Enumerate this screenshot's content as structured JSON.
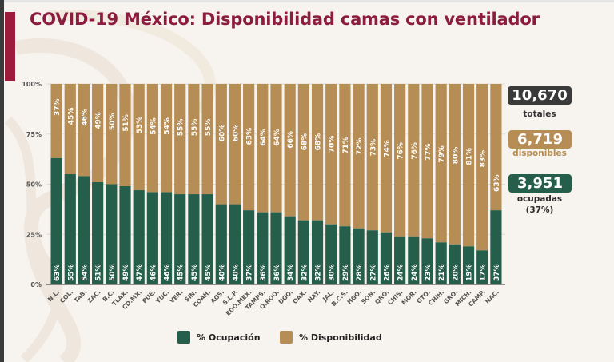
{
  "title": "COVID-19 México: Disponibilidad camas con ventilador",
  "colors": {
    "ocupacion": "#255e4b",
    "disponibilidad": "#b68d55",
    "title": "#8c1d40",
    "accent": "#9b1c3d",
    "total_box": "#3a3a3a"
  },
  "summary": {
    "total_value": "10,670",
    "total_label": "totales",
    "disponibles_value": "6,719",
    "disponibles_label": "disponibles",
    "ocupadas_value": "3,951",
    "ocupadas_label": "ocupadas",
    "ocupadas_pct": "(37%)"
  },
  "legend": {
    "ocupacion": "% Ocupación",
    "disponibilidad": "% Disponibilidad"
  },
  "chart_data": {
    "type": "bar",
    "stacked": true,
    "title": "COVID-19 México: Disponibilidad camas con ventilador",
    "xlabel": "",
    "ylabel": "",
    "ylim": [
      0,
      100
    ],
    "yticks": [
      "0%",
      "25%",
      "50%",
      "75%",
      "100%"
    ],
    "ytick_values": [
      0,
      25,
      50,
      75,
      100
    ],
    "legend_position": "bottom",
    "categories": [
      "N.L.",
      "COL.",
      "TAB.",
      "ZAC.",
      "B.C.",
      "TLAX.",
      "CD.MX.",
      "PUE.",
      "YUC.",
      "VER.",
      "SIN.",
      "COAH.",
      "AGS.",
      "S.L.P.",
      "EDO.MEX.",
      "TAMPS.",
      "Q.ROO.",
      "DGO.",
      "OAX.",
      "NAY.",
      "JAL.",
      "B.C.S.",
      "HGO.",
      "SON.",
      "QRO.",
      "CHIS.",
      "MOR.",
      "GTO.",
      "CHIH.",
      "GRO.",
      "MICH.",
      "CAMP.",
      "NAC."
    ],
    "series": [
      {
        "name": "% Ocupación",
        "values": [
          63,
          55,
          54,
          51,
          50,
          49,
          47,
          46,
          46,
          45,
          45,
          45,
          40,
          40,
          37,
          36,
          36,
          34,
          32,
          32,
          30,
          29,
          28,
          27,
          26,
          24,
          24,
          23,
          21,
          20,
          19,
          17,
          37
        ],
        "labels": [
          "63%",
          "55%",
          "54%",
          "51%",
          "50%",
          "49%",
          "47%",
          "46%",
          "46%",
          "45%",
          "45%",
          "45%",
          "40%",
          "40%",
          "37%",
          "36%",
          "36%",
          "34%",
          "32%",
          "32%",
          "30%",
          "29%",
          "28%",
          "27%",
          "26%",
          "24%",
          "24%",
          "23%",
          "21%",
          "20%",
          "19%",
          "17%",
          "37%"
        ]
      },
      {
        "name": "% Disponibilidad",
        "values": [
          37,
          45,
          46,
          49,
          50,
          51,
          53,
          54,
          54,
          55,
          55,
          55,
          60,
          60,
          63,
          64,
          64,
          66,
          68,
          68,
          70,
          71,
          72,
          73,
          74,
          76,
          76,
          77,
          79,
          80,
          81,
          83,
          63
        ],
        "labels": [
          "37%",
          "45%",
          "46%",
          "49%",
          "50%",
          "51%",
          "53%",
          "54%",
          "54%",
          "55%",
          "55%",
          "55%",
          "60%",
          "60%",
          "63%",
          "64%",
          "64%",
          "66%",
          "68%",
          "68%",
          "70%",
          "71%",
          "72%",
          "73%",
          "74%",
          "76%",
          "76%",
          "77%",
          "79%",
          "80%",
          "81%",
          "83%",
          "63%"
        ]
      }
    ]
  }
}
